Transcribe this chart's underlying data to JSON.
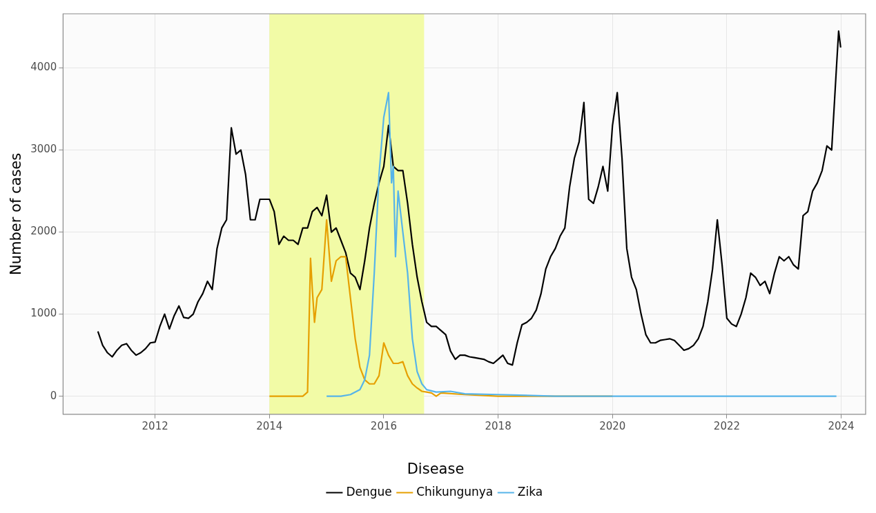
{
  "chart_data": {
    "type": "line",
    "ylabel": "Number of cases",
    "legend_title": "Disease",
    "legend": "bottom",
    "grid": true,
    "marker": "none",
    "line_style": "solid",
    "xlim": [
      "2010-05-22",
      "2024-06-05"
    ],
    "xticks": [
      "2012",
      "2014",
      "2016",
      "2018",
      "2020",
      "2022",
      "2024"
    ],
    "ylim": [
      -220,
      4660
    ],
    "yticks": [
      0,
      1000,
      2000,
      3000,
      4000
    ],
    "bands": [
      {
        "axis": "x",
        "from": "2014-01-01",
        "to": "2016-09-15",
        "color": "#f2fba6"
      }
    ],
    "series": [
      {
        "name": "Dengue",
        "color": "#000000",
        "x": [
          "2011-01",
          "2011-02",
          "2011-03",
          "2011-04",
          "2011-05",
          "2011-06",
          "2011-07",
          "2011-08",
          "2011-09",
          "2011-10",
          "2011-11",
          "2011-12",
          "2012-01",
          "2012-02",
          "2012-03",
          "2012-04",
          "2012-05",
          "2012-06",
          "2012-07",
          "2012-08",
          "2012-09",
          "2012-10",
          "2012-11",
          "2012-12",
          "2013-01",
          "2013-02",
          "2013-03",
          "2013-04",
          "2013-05",
          "2013-06",
          "2013-07",
          "2013-08",
          "2013-09",
          "2013-10",
          "2013-11",
          "2013-12",
          "2014-01",
          "2014-02",
          "2014-03",
          "2014-04",
          "2014-05",
          "2014-06",
          "2014-07",
          "2014-08",
          "2014-09",
          "2014-10",
          "2014-11",
          "2014-12",
          "2015-01",
          "2015-02",
          "2015-03",
          "2015-04",
          "2015-05",
          "2015-06",
          "2015-07",
          "2015-08",
          "2015-09",
          "2015-10",
          "2015-11",
          "2015-12",
          "2016-01",
          "2016-02",
          "2016-03",
          "2016-04",
          "2016-05",
          "2016-06",
          "2016-07",
          "2016-08",
          "2016-09",
          "2016-10",
          "2016-11",
          "2016-12",
          "2017-01",
          "2017-02",
          "2017-03",
          "2017-04",
          "2017-05",
          "2017-06",
          "2017-07",
          "2017-08",
          "2017-09",
          "2017-10",
          "2017-11",
          "2017-12",
          "2018-01",
          "2018-02",
          "2018-03",
          "2018-04",
          "2018-05",
          "2018-06",
          "2018-07",
          "2018-08",
          "2018-09",
          "2018-10",
          "2018-11",
          "2018-12",
          "2019-01",
          "2019-02",
          "2019-03",
          "2019-04",
          "2019-05",
          "2019-06",
          "2019-07",
          "2019-08",
          "2019-09",
          "2019-10",
          "2019-11",
          "2019-12",
          "2020-01",
          "2020-02",
          "2020-03",
          "2020-04",
          "2020-05",
          "2020-06",
          "2020-07",
          "2020-08",
          "2020-09",
          "2020-10",
          "2020-11",
          "2020-12",
          "2021-01",
          "2021-02",
          "2021-03",
          "2021-04",
          "2021-05",
          "2021-06",
          "2021-07",
          "2021-08",
          "2021-09",
          "2021-10",
          "2021-11",
          "2021-12",
          "2022-01",
          "2022-02",
          "2022-03",
          "2022-04",
          "2022-05",
          "2022-06",
          "2022-07",
          "2022-08",
          "2022-09",
          "2022-10",
          "2022-11",
          "2022-12",
          "2023-01",
          "2023-02",
          "2023-03",
          "2023-04",
          "2023-05",
          "2023-06",
          "2023-07",
          "2023-08",
          "2023-09",
          "2023-10",
          "2023-11",
          "2023-12",
          "2023-12-15",
          "2023-12-28"
        ],
        "values": [
          790,
          620,
          530,
          480,
          560,
          620,
          640,
          560,
          500,
          530,
          580,
          650,
          660,
          850,
          1000,
          820,
          980,
          1100,
          960,
          950,
          1000,
          1150,
          1250,
          1400,
          1300,
          1800,
          2050,
          2150,
          3270,
          2950,
          3000,
          2700,
          2150,
          2150,
          2400,
          2400,
          2400,
          2250,
          1850,
          1950,
          1900,
          1900,
          1850,
          2050,
          2050,
          2250,
          2300,
          2200,
          2450,
          2000,
          2050,
          1900,
          1750,
          1500,
          1450,
          1300,
          1650,
          2050,
          2350,
          2600,
          2800,
          3300,
          2800,
          2750,
          2750,
          2350,
          1850,
          1450,
          1150,
          900,
          850,
          850,
          800,
          750,
          550,
          450,
          500,
          500,
          480,
          470,
          460,
          450,
          420,
          400,
          450,
          500,
          400,
          380,
          650,
          870,
          900,
          950,
          1050,
          1250,
          1550,
          1700,
          1800,
          1950,
          2050,
          2550,
          2900,
          3100,
          3580,
          2400,
          2350,
          2550,
          2800,
          2500,
          3300,
          3700,
          2900,
          1800,
          1450,
          1300,
          1000,
          750,
          650,
          650,
          680,
          690,
          700,
          680,
          620,
          560,
          580,
          620,
          700,
          850,
          1150,
          1550,
          2150,
          1600,
          950,
          880,
          850,
          1000,
          1200,
          1500,
          1450,
          1350,
          1400,
          1250,
          1500,
          1700,
          1650,
          1700,
          1600,
          1550,
          2200,
          2250,
          2500,
          2600,
          2750,
          3050,
          3000,
          4000,
          4450,
          4250
        ]
      },
      {
        "name": "Chikungunya",
        "color": "#e69f00",
        "x": [
          "2014-01",
          "2014-05",
          "2014-08",
          "2014-09",
          "2014-09-20",
          "2014-10",
          "2014-10-15",
          "2014-11",
          "2014-12",
          "2015-01",
          "2015-02",
          "2015-03",
          "2015-04",
          "2015-05",
          "2015-06",
          "2015-07",
          "2015-08",
          "2015-09",
          "2015-10",
          "2015-11",
          "2015-12",
          "2016-01",
          "2016-02",
          "2016-03",
          "2016-04",
          "2016-05",
          "2016-06",
          "2016-07",
          "2016-08",
          "2016-09",
          "2016-10",
          "2016-11",
          "2016-12",
          "2017-01",
          "2017-06",
          "2018-01",
          "2019-01",
          "2020-01"
        ],
        "values": [
          0,
          0,
          0,
          50,
          1680,
          1300,
          900,
          1200,
          1300,
          2150,
          1400,
          1650,
          1700,
          1700,
          1200,
          700,
          350,
          200,
          150,
          150,
          250,
          650,
          500,
          400,
          400,
          420,
          250,
          150,
          100,
          60,
          50,
          40,
          0,
          40,
          20,
          0,
          0,
          0
        ]
      },
      {
        "name": "Zika",
        "color": "#56b4e9",
        "x": [
          "2015-01",
          "2015-04",
          "2015-06",
          "2015-08",
          "2015-09",
          "2015-10",
          "2015-11",
          "2015-12",
          "2016-01",
          "2016-02",
          "2016-02-20",
          "2016-03",
          "2016-03-15",
          "2016-04",
          "2016-05",
          "2016-06",
          "2016-07",
          "2016-08",
          "2016-09",
          "2016-10",
          "2016-12",
          "2017-03",
          "2017-06",
          "2018-01",
          "2019-01",
          "2020-01",
          "2021-01",
          "2022-01",
          "2023-01",
          "2023-12"
        ],
        "values": [
          0,
          0,
          20,
          80,
          200,
          500,
          1500,
          2700,
          3400,
          3700,
          2600,
          2800,
          1700,
          2500,
          2000,
          1500,
          700,
          300,
          150,
          80,
          50,
          60,
          30,
          20,
          0,
          0,
          0,
          0,
          0,
          0
        ]
      }
    ]
  }
}
